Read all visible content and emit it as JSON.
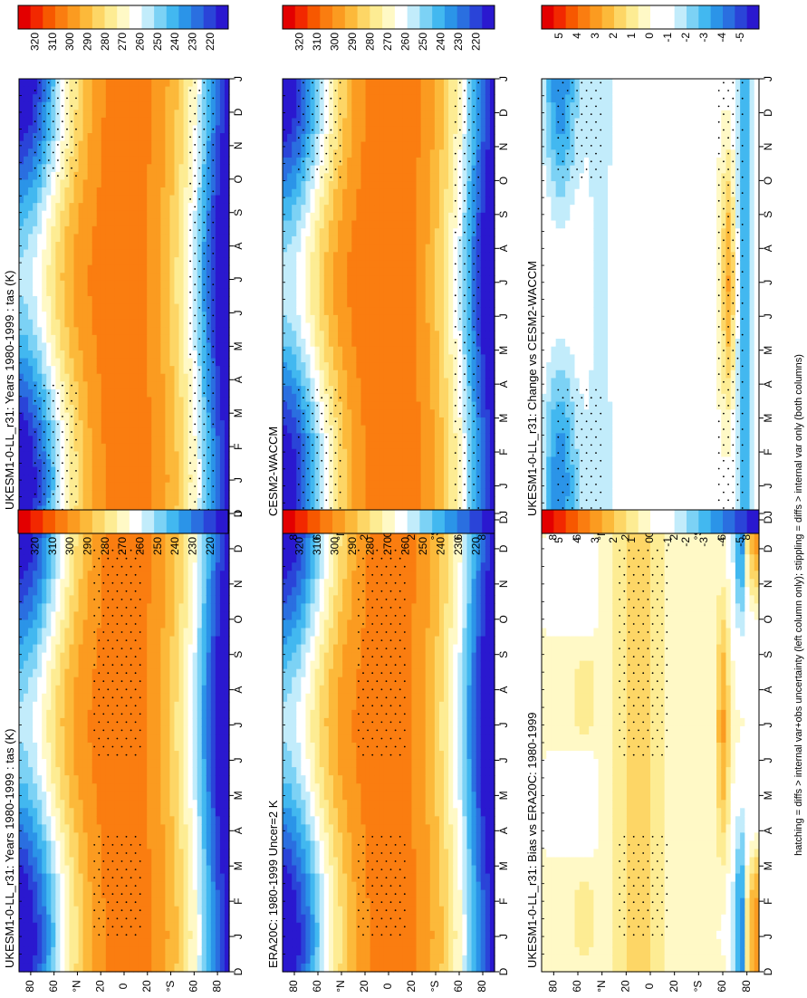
{
  "figure": {
    "footnote": "hatching = diffs > internal var+obs uncertainty (left column only); stippling = diffs > internal var only (both columns)",
    "month_labels": [
      "D",
      "J",
      "F",
      "M",
      "A",
      "M",
      "J",
      "J",
      "A",
      "S",
      "O",
      "N",
      "D",
      "J"
    ],
    "lat_labels": [
      "80",
      "60",
      "°N",
      "20",
      "0",
      "20",
      "°S",
      "60",
      "80"
    ]
  },
  "colorbars": {
    "abs": {
      "tick_labels": [
        "320",
        "310",
        "300",
        "290",
        "280",
        "270",
        "260",
        "250",
        "240",
        "230",
        "220"
      ],
      "colors": [
        "#e30000",
        "#f22800",
        "#f75800",
        "#fa7d10",
        "#fb9b20",
        "#fcb93a",
        "#fdd666",
        "#fdec93",
        "#fff9c6",
        "#ffffff",
        "#c2ecfb",
        "#7cd2f5",
        "#42b8f0",
        "#2b94e8",
        "#2a6fe0",
        "#2a44d8",
        "#2a18cf"
      ]
    },
    "diff": {
      "tick_labels": [
        "5",
        "4",
        "3",
        "2",
        "1",
        "0",
        "-1",
        "-2",
        "-3",
        "-4",
        "-5"
      ],
      "colors": [
        "#e30000",
        "#f22800",
        "#f75800",
        "#fa7d10",
        "#fb9b20",
        "#fcb93a",
        "#fdd666",
        "#fdec93",
        "#fff9c6",
        "#ffffff",
        "#ffffff",
        "#c2ecfb",
        "#7cd2f5",
        "#42b8f0",
        "#2b94e8",
        "#2a6fe0",
        "#2a44d8",
        "#2a18cf"
      ]
    }
  },
  "panels": [
    {
      "id": "p1",
      "title": "UKESM1-0-LL_r31: Years 1980-1999 : tas (K)",
      "kind": "abs",
      "variant": "A"
    },
    {
      "id": "p2",
      "title": "ERA20C: 1980-1999 Uncer=2 K",
      "kind": "abs",
      "variant": "A"
    },
    {
      "id": "p3",
      "title": "UKESM1-0-LL_r31: Bias vs ERA20C: 1980-1999",
      "kind": "diff",
      "variant": "A"
    },
    {
      "id": "p4",
      "title": "UKESM1-0-LL_r31: Years 1980-1999 : tas (K)",
      "kind": "abs",
      "variant": "B"
    },
    {
      "id": "p5",
      "title": "CESM2-WACCM",
      "kind": "abs",
      "variant": "B"
    },
    {
      "id": "p6",
      "title": "UKESM1-0-LL_r31: Change vs CESM2-WACCM",
      "kind": "diff",
      "variant": "B"
    }
  ],
  "chart_data": [
    {
      "type": "heatmap",
      "title": "UKESM1-0-LL_r31: Years 1980-1999 : tas (K)",
      "x": "month (D..J)",
      "y": "latitude (90N..90S)",
      "units": "K",
      "color_levels": [
        220,
        230,
        240,
        250,
        260,
        270,
        280,
        290,
        300,
        310,
        320
      ],
      "values": "zonal-mean surface air temperature; ~300 K tropics, ~270 K near 60°, ~230-240 K polar"
    },
    {
      "type": "heatmap",
      "title": "ERA20C: 1980-1999 Uncer=2 K",
      "x": "month (D..J)",
      "y": "latitude (90N..90S)",
      "units": "K",
      "color_levels": [
        220,
        230,
        240,
        250,
        260,
        270,
        280,
        290,
        300,
        310,
        320
      ]
    },
    {
      "type": "heatmap",
      "title": "UKESM1-0-LL_r31: Bias vs ERA20C: 1980-1999",
      "x": "month (D..J)",
      "y": "latitude (90N..90S)",
      "units": "K",
      "color_levels": [
        -5,
        -4,
        -3,
        -2,
        -1,
        0,
        1,
        2,
        3,
        4,
        5
      ]
    },
    {
      "type": "heatmap",
      "title": "UKESM1-0-LL_r31: Years 1980-1999 : tas (K)",
      "x": "month (D..J)",
      "y": "latitude (90N..90S)",
      "units": "K",
      "color_levels": [
        220,
        230,
        240,
        250,
        260,
        270,
        280,
        290,
        300,
        310,
        320
      ]
    },
    {
      "type": "heatmap",
      "title": "CESM2-WACCM",
      "x": "month (D..J)",
      "y": "latitude (90N..90S)",
      "units": "K",
      "color_levels": [
        220,
        230,
        240,
        250,
        260,
        270,
        280,
        290,
        300,
        310,
        320
      ]
    },
    {
      "type": "heatmap",
      "title": "UKESM1-0-LL_r31: Change vs CESM2-WACCM",
      "x": "month (D..J)",
      "y": "latitude (90N..90S)",
      "units": "K",
      "color_levels": [
        -5,
        -4,
        -3,
        -2,
        -1,
        0,
        1,
        2,
        3,
        4,
        5
      ]
    }
  ]
}
